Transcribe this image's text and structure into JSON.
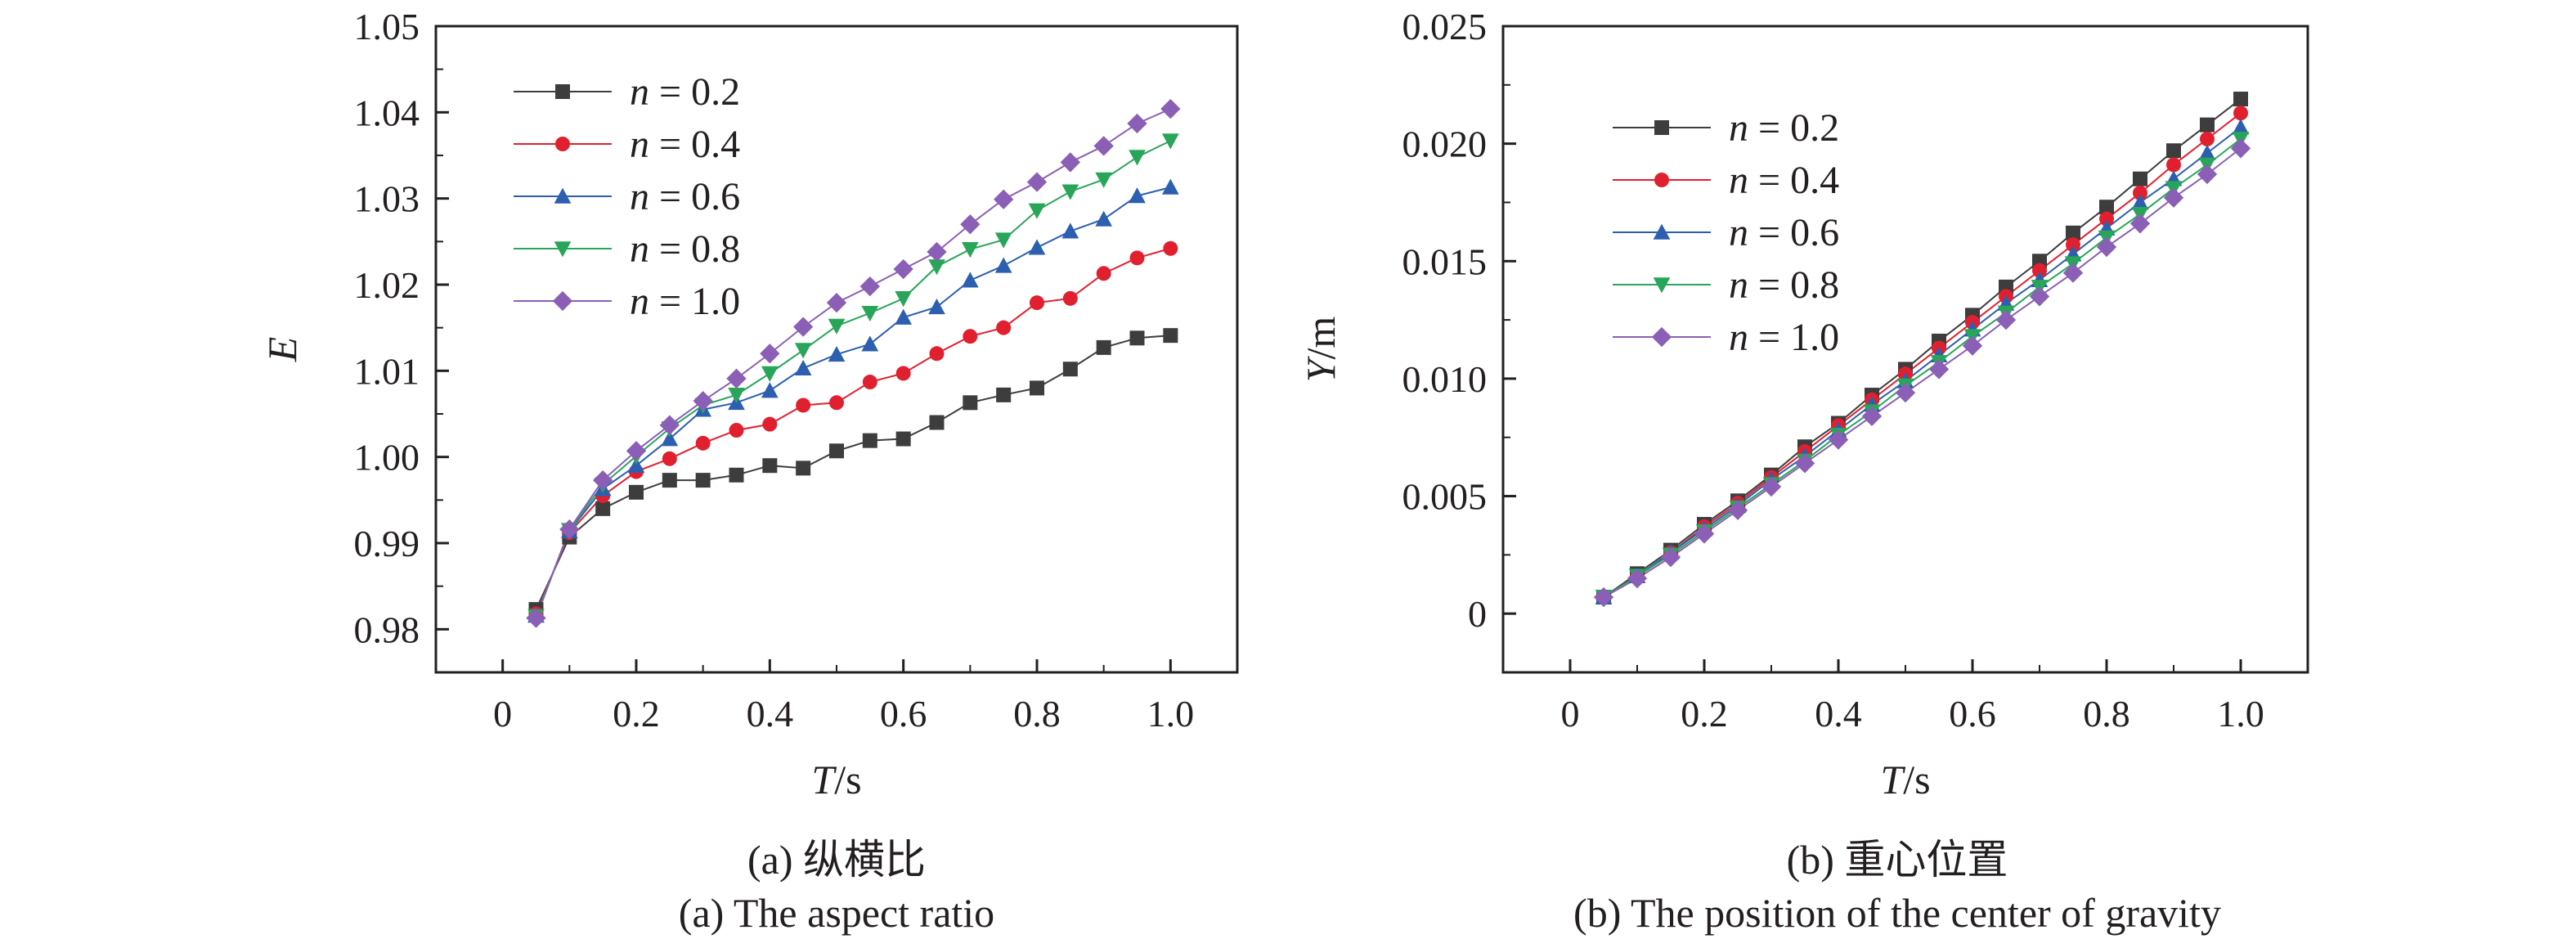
{
  "figure": {
    "captions": [
      {
        "zh": "(a) 纵横比",
        "en": "(a) The aspect ratio"
      },
      {
        "zh": "(b) 重心位置",
        "en": "(b) The position of the center of gravity"
      }
    ]
  },
  "chart_data": [
    {
      "type": "line",
      "title": "",
      "xlabel": {
        "var": "T",
        "unit": "/s"
      },
      "ylabel": {
        "var": "E",
        "unit": ""
      },
      "xlim": [
        -0.1,
        1.1
      ],
      "ylim": [
        0.975,
        1.05
      ],
      "xticks": [
        0,
        0.2,
        0.4,
        0.6,
        0.8,
        1.0
      ],
      "xtick_labels": [
        "0",
        "0.2",
        "0.4",
        "0.6",
        "0.8",
        "1.0"
      ],
      "yticks": [
        0.98,
        0.99,
        1.0,
        1.01,
        1.02,
        1.03,
        1.04,
        1.05
      ],
      "ytick_labels": [
        "0.98",
        "0.99",
        "1.00",
        "1.01",
        "1.02",
        "1.03",
        "1.04",
        "1.05"
      ],
      "grid": false,
      "legend": "top-left",
      "x": [
        0.05,
        0.1,
        0.15,
        0.2,
        0.25,
        0.3,
        0.35,
        0.4,
        0.45,
        0.5,
        0.55,
        0.6,
        0.65,
        0.7,
        0.75,
        0.8,
        0.85,
        0.9,
        0.95,
        1.0
      ],
      "series": [
        {
          "name": "n = 0.2",
          "var": "n",
          "value": "= 0.2",
          "color": "#3d3d3d",
          "marker": "square",
          "values": [
            0.9823,
            0.9907,
            0.994,
            0.9959,
            0.9973,
            0.9973,
            0.9979,
            0.999,
            0.9987,
            1.0007,
            1.0019,
            1.0021,
            1.004,
            1.0063,
            1.0072,
            1.008,
            1.0102,
            1.0127,
            1.0138,
            1.0141
          ]
        },
        {
          "name": "n = 0.4",
          "var": "n",
          "value": "= 0.4",
          "color": "#e0202f",
          "marker": "circle",
          "values": [
            0.9818,
            0.9912,
            0.9955,
            0.9983,
            0.9998,
            1.0016,
            1.0031,
            1.0038,
            1.006,
            1.0063,
            1.0087,
            1.0097,
            1.012,
            1.014,
            1.015,
            1.0179,
            1.0184,
            1.0213,
            1.0231,
            1.0242
          ]
        },
        {
          "name": "n = 0.6",
          "var": "n",
          "value": "= 0.6",
          "color": "#2d5fb0",
          "marker": "triangle-up",
          "values": [
            0.9816,
            0.9914,
            0.9963,
            0.999,
            1.0021,
            1.0055,
            1.0063,
            1.0077,
            1.0103,
            1.0119,
            1.0131,
            1.0162,
            1.0174,
            1.0205,
            1.0222,
            1.0243,
            1.0262,
            1.0276,
            1.0303,
            1.0313
          ]
        },
        {
          "name": "n = 0.8",
          "var": "n",
          "value": "= 0.8",
          "color": "#29a55a",
          "marker": "triangle-down",
          "values": [
            0.9815,
            0.9915,
            0.9968,
            1.0001,
            1.0033,
            1.006,
            1.0072,
            1.0097,
            1.0124,
            1.0152,
            1.0167,
            1.0184,
            1.0221,
            1.0241,
            1.0252,
            1.0286,
            1.0308,
            1.0322,
            1.0348,
            1.0367
          ]
        },
        {
          "name": "n = 1.0",
          "var": "n",
          "value": "= 1.0",
          "color": "#8a5fb5",
          "marker": "diamond",
          "values": [
            0.9813,
            0.9916,
            0.9973,
            1.0007,
            1.0037,
            1.0065,
            1.0091,
            1.012,
            1.0151,
            1.0179,
            1.0198,
            1.0218,
            1.0238,
            1.027,
            1.0299,
            1.0319,
            1.0342,
            1.0361,
            1.0387,
            1.0404
          ]
        }
      ]
    },
    {
      "type": "line",
      "title": "",
      "xlabel": {
        "var": "T",
        "unit": "/s"
      },
      "ylabel": {
        "var": "Y",
        "unit": "/m"
      },
      "xlim": [
        -0.1,
        1.1
      ],
      "ylim": [
        -0.0025,
        0.025
      ],
      "xticks": [
        0,
        0.2,
        0.4,
        0.6,
        0.8,
        1.0
      ],
      "xtick_labels": [
        "0",
        "0.2",
        "0.4",
        "0.6",
        "0.8",
        "1.0"
      ],
      "yticks": [
        0,
        0.005,
        0.01,
        0.015,
        0.02,
        0.025
      ],
      "ytick_labels": [
        "0",
        "0.005",
        "0.010",
        "0.015",
        "0.020",
        "0.025"
      ],
      "grid": false,
      "legend": "top-left",
      "x": [
        0.05,
        0.1,
        0.15,
        0.2,
        0.25,
        0.3,
        0.35,
        0.4,
        0.45,
        0.5,
        0.55,
        0.6,
        0.65,
        0.7,
        0.75,
        0.8,
        0.85,
        0.9,
        0.95,
        1.0
      ],
      "series": [
        {
          "name": "n = 0.2",
          "var": "n",
          "value": "= 0.2",
          "color": "#3d3d3d",
          "marker": "square",
          "values": [
            0.0007,
            0.0017,
            0.0027,
            0.0038,
            0.0048,
            0.0059,
            0.0071,
            0.0081,
            0.0093,
            0.0104,
            0.0116,
            0.0127,
            0.0139,
            0.015,
            0.0162,
            0.0173,
            0.0185,
            0.0197,
            0.0208,
            0.0219
          ]
        },
        {
          "name": "n = 0.4",
          "var": "n",
          "value": "= 0.4",
          "color": "#e0202f",
          "marker": "circle",
          "values": [
            0.0007,
            0.0016,
            0.0026,
            0.0037,
            0.0047,
            0.0058,
            0.0069,
            0.008,
            0.0091,
            0.0102,
            0.0113,
            0.0124,
            0.0135,
            0.0146,
            0.0157,
            0.0168,
            0.0179,
            0.0191,
            0.0202,
            0.0213
          ]
        },
        {
          "name": "n = 0.6",
          "var": "n",
          "value": "= 0.6",
          "color": "#2d5fb0",
          "marker": "triangle-up",
          "values": [
            0.0007,
            0.0016,
            0.0026,
            0.0036,
            0.0046,
            0.0057,
            0.0067,
            0.0078,
            0.0089,
            0.0099,
            0.011,
            0.0121,
            0.0132,
            0.0142,
            0.0153,
            0.0164,
            0.0175,
            0.0185,
            0.0196,
            0.0207
          ]
        },
        {
          "name": "n = 0.8",
          "var": "n",
          "value": "= 0.8",
          "color": "#29a55a",
          "marker": "triangle-down",
          "values": [
            0.0007,
            0.0016,
            0.0025,
            0.0035,
            0.0045,
            0.0055,
            0.0065,
            0.0076,
            0.0086,
            0.0097,
            0.0107,
            0.0118,
            0.0128,
            0.0139,
            0.0149,
            0.016,
            0.017,
            0.0181,
            0.0191,
            0.0202
          ]
        },
        {
          "name": "n = 1.0",
          "var": "n",
          "value": "= 1.0",
          "color": "#8a5fb5",
          "marker": "diamond",
          "values": [
            0.0007,
            0.0015,
            0.0024,
            0.0034,
            0.0044,
            0.0054,
            0.0064,
            0.0074,
            0.0084,
            0.0094,
            0.0104,
            0.0114,
            0.0125,
            0.0135,
            0.0145,
            0.0156,
            0.0166,
            0.0177,
            0.0187,
            0.0198
          ]
        }
      ]
    }
  ]
}
